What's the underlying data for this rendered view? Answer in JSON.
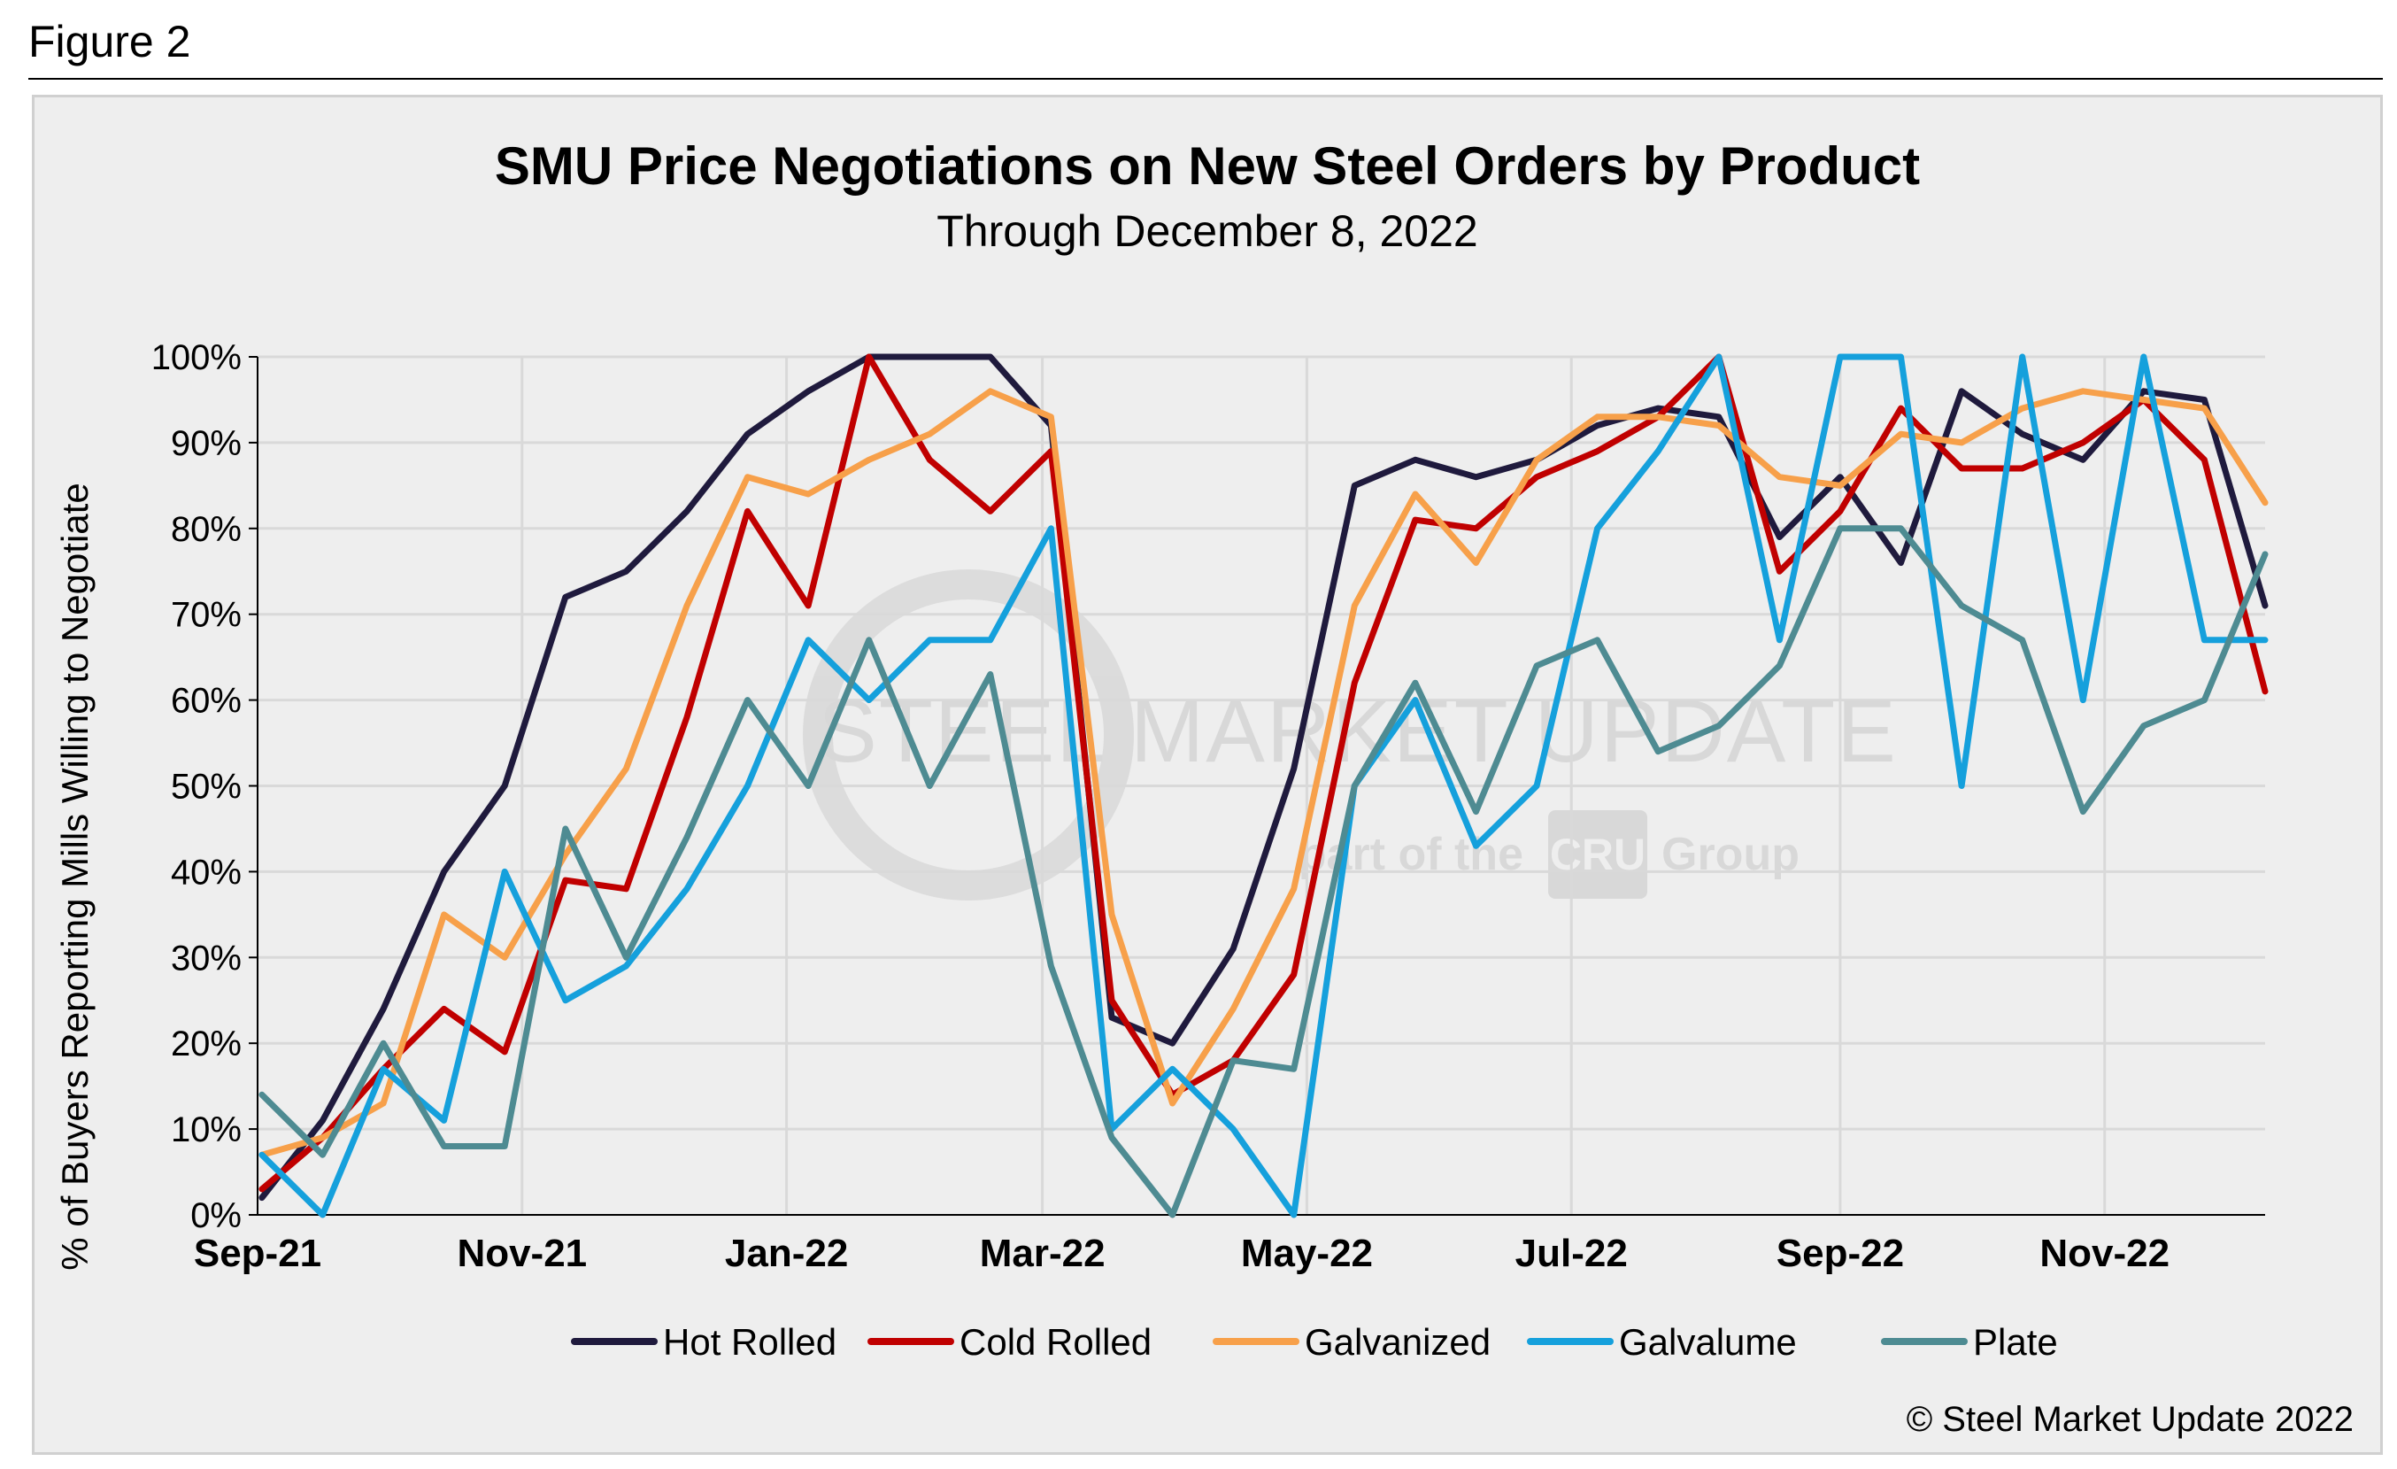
{
  "figure_label": "Figure 2",
  "watermark": {
    "brand": "STEEL MARKET UPDATE",
    "tagline_pre": "part of the",
    "tagline_logo": "CRU",
    "tagline_post": "Group"
  },
  "copyright": "© Steel Market Update 2022",
  "colors": {
    "background": "#eeeeee",
    "grid": "#d9d9d9",
    "axis": "#000000"
  },
  "chart_data": {
    "type": "line",
    "title": "SMU Price Negotiations on New Steel Orders by Product",
    "subtitle": "Through December 8, 2022",
    "xlabel": "",
    "ylabel": "% of Buyers Reporting Mills Willing to Negotiate",
    "ylim": [
      0,
      100
    ],
    "yticks": [
      "0%",
      "10%",
      "20%",
      "30%",
      "40%",
      "50%",
      "60%",
      "70%",
      "80%",
      "90%",
      "100%"
    ],
    "xlim": [
      "2021-09-01",
      "2022-12-08"
    ],
    "xticks": [
      {
        "label": "Sep-21",
        "date": "2021-09-01"
      },
      {
        "label": "Nov-21",
        "date": "2021-11-01"
      },
      {
        "label": "Jan-22",
        "date": "2022-01-01"
      },
      {
        "label": "Mar-22",
        "date": "2022-03-01"
      },
      {
        "label": "May-22",
        "date": "2022-05-01"
      },
      {
        "label": "Jul-22",
        "date": "2022-07-01"
      },
      {
        "label": "Sep-22",
        "date": "2022-09-01"
      },
      {
        "label": "Nov-22",
        "date": "2022-11-01"
      }
    ],
    "grid": true,
    "legend_position": "bottom",
    "x": [
      "2021-09-02",
      "2021-09-16",
      "2021-09-30",
      "2021-10-14",
      "2021-10-28",
      "2021-11-11",
      "2021-11-25",
      "2021-12-09",
      "2021-12-23",
      "2022-01-06",
      "2022-01-20",
      "2022-02-03",
      "2022-02-17",
      "2022-03-03",
      "2022-03-17",
      "2022-03-31",
      "2022-04-14",
      "2022-04-28",
      "2022-05-12",
      "2022-05-26",
      "2022-06-09",
      "2022-06-23",
      "2022-07-07",
      "2022-07-21",
      "2022-08-04",
      "2022-08-18",
      "2022-09-01",
      "2022-09-15",
      "2022-09-29",
      "2022-10-13",
      "2022-10-27",
      "2022-11-10",
      "2022-11-24",
      "2022-12-08"
    ],
    "series": [
      {
        "name": "Hot Rolled",
        "color": "#1f1a3d",
        "values": [
          2,
          11,
          24,
          40,
          50,
          72,
          75,
          82,
          91,
          96,
          100,
          100,
          100,
          92,
          23,
          20,
          31,
          52,
          85,
          88,
          86,
          88,
          92,
          94,
          93,
          79,
          86,
          76,
          96,
          91,
          88,
          96,
          95,
          71
        ]
      },
      {
        "name": "Cold Rolled",
        "color": "#c00000",
        "values": [
          3,
          9,
          17,
          24,
          19,
          39,
          38,
          58,
          82,
          71,
          100,
          88,
          82,
          89,
          25,
          14,
          18,
          28,
          62,
          81,
          80,
          86,
          89,
          93,
          100,
          75,
          82,
          94,
          87,
          87,
          90,
          95,
          88,
          61
        ]
      },
      {
        "name": "Galvanized",
        "color": "#f7a04a",
        "values": [
          7,
          9,
          13,
          35,
          30,
          42,
          52,
          71,
          86,
          84,
          88,
          91,
          96,
          93,
          35,
          13,
          24,
          38,
          71,
          84,
          76,
          88,
          93,
          93,
          92,
          86,
          85,
          91,
          90,
          94,
          96,
          95,
          94,
          83
        ]
      },
      {
        "name": "Galvalume",
        "color": "#15a0dc",
        "values": [
          7,
          0,
          17,
          11,
          40,
          25,
          29,
          38,
          50,
          67,
          60,
          67,
          67,
          80,
          10,
          17,
          10,
          0,
          50,
          60,
          43,
          50,
          80,
          89,
          100,
          67,
          100,
          100,
          50,
          100,
          60,
          100,
          67,
          67
        ]
      },
      {
        "name": "Plate",
        "color": "#4e8b92",
        "values": [
          14,
          7,
          20,
          8,
          8,
          45,
          30,
          44,
          60,
          50,
          67,
          50,
          63,
          29,
          9,
          0,
          18,
          17,
          50,
          62,
          47,
          64,
          67,
          54,
          57,
          64,
          80,
          80,
          71,
          67,
          47,
          57,
          60,
          77
        ]
      }
    ]
  }
}
